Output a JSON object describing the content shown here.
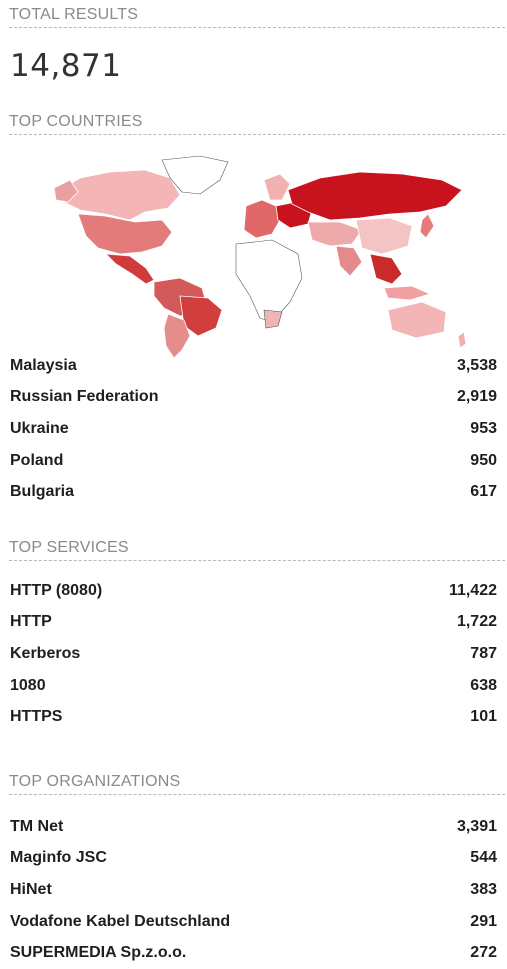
{
  "total_results": {
    "label": "TOTAL RESULTS",
    "value": "14,871"
  },
  "top_countries": {
    "label": "TOP COUNTRIES",
    "items": [
      {
        "name": "Malaysia",
        "count": "3,538"
      },
      {
        "name": "Russian Federation",
        "count": "2,919"
      },
      {
        "name": "Ukraine",
        "count": "953"
      },
      {
        "name": "Poland",
        "count": "950"
      },
      {
        "name": "Bulgaria",
        "count": "617"
      }
    ]
  },
  "top_services": {
    "label": "TOP SERVICES",
    "items": [
      {
        "name": "HTTP (8080)",
        "count": "11,422"
      },
      {
        "name": "HTTP",
        "count": "1,722"
      },
      {
        "name": "Kerberos",
        "count": "787"
      },
      {
        "name": "1080",
        "count": "638"
      },
      {
        "name": "HTTPS",
        "count": "101"
      }
    ]
  },
  "top_organizations": {
    "label": "TOP ORGANIZATIONS",
    "items": [
      {
        "name": "TM Net",
        "count": "3,391"
      },
      {
        "name": "Maginfo JSC",
        "count": "544"
      },
      {
        "name": "HiNet",
        "count": "383"
      },
      {
        "name": "Vodafone Kabel Deutschland",
        "count": "291"
      },
      {
        "name": "SUPERMEDIA Sp.z.o.o.",
        "count": "272"
      }
    ]
  },
  "colors": {
    "heading": "#8a8a8a",
    "map_high": "#c8131e",
    "map_mid": "#e06a6a",
    "map_low": "#f3b5b5",
    "map_none": "#ffffff"
  }
}
